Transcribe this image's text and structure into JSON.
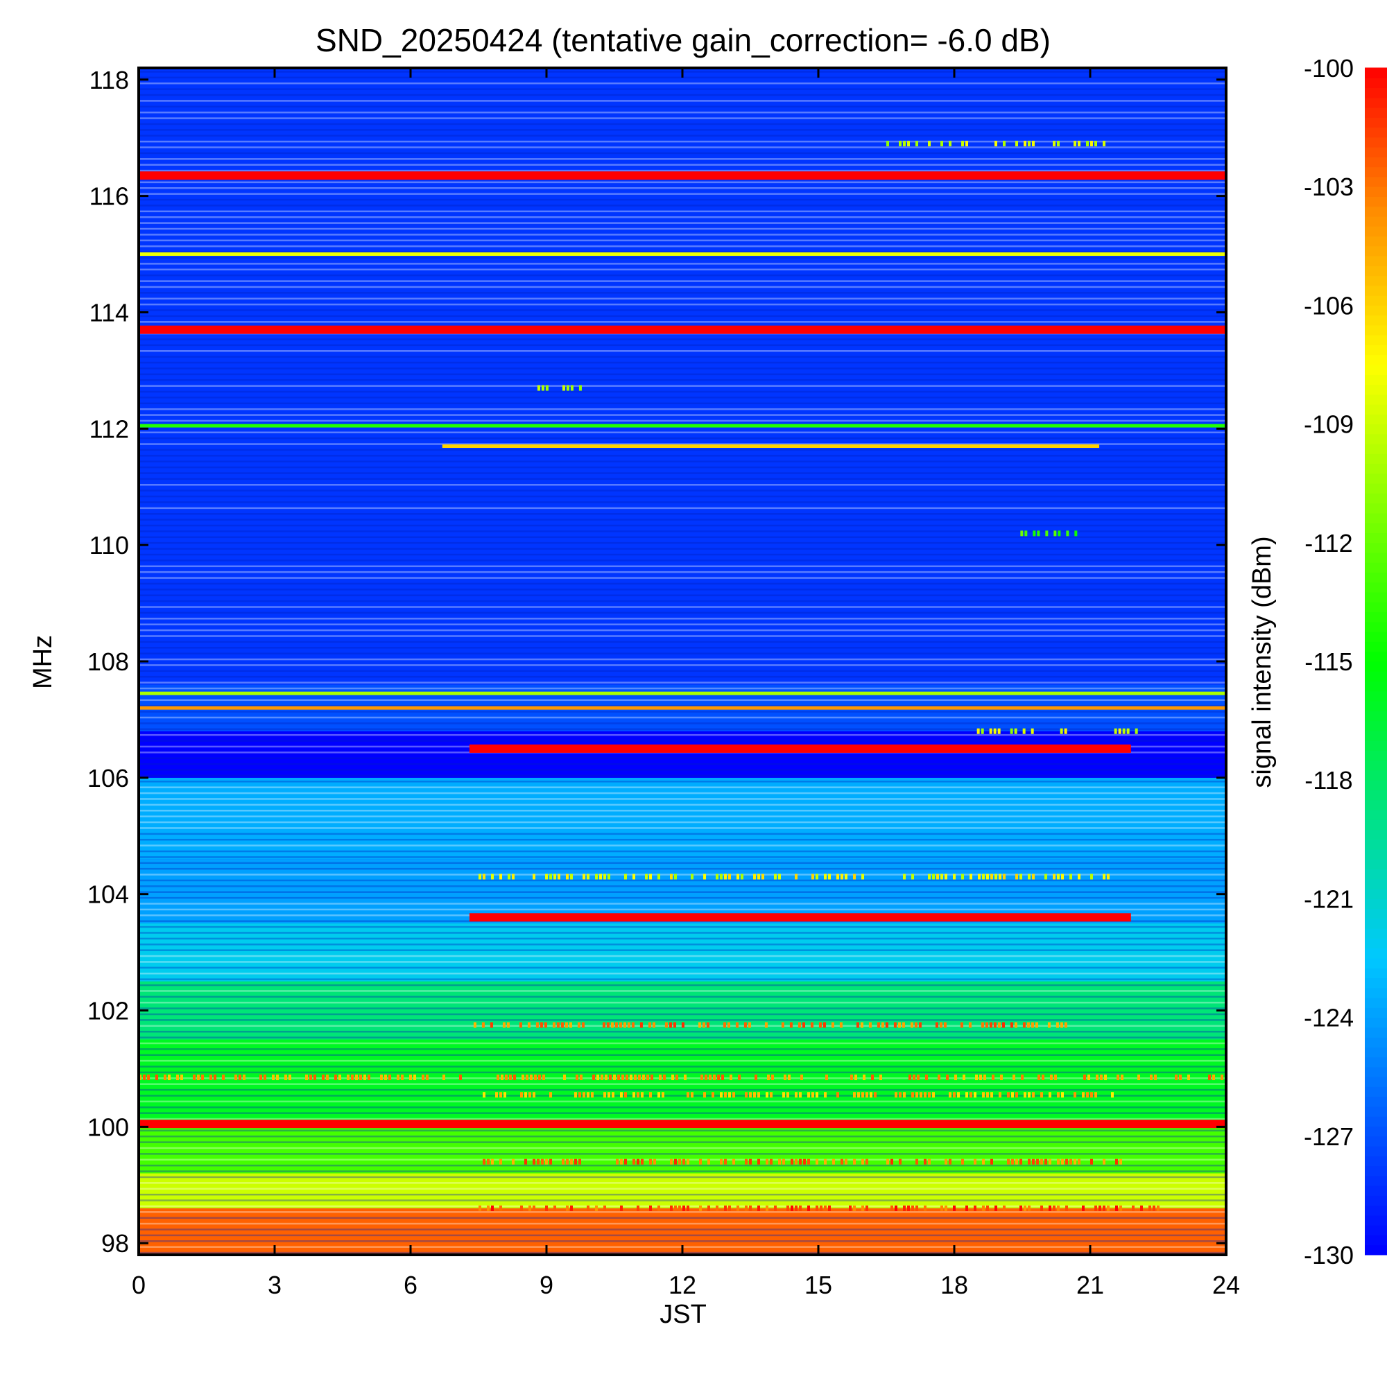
{
  "chart_data": {
    "type": "heatmap",
    "title": "SND_20250424 (tentative gain_correction= -6.0 dB)",
    "xlabel": "JST",
    "ylabel": "MHz",
    "xlim": [
      0,
      24
    ],
    "ylim": [
      97.8,
      118.2
    ],
    "x_ticks": [
      0,
      3,
      6,
      9,
      12,
      15,
      18,
      21,
      24
    ],
    "y_ticks": [
      98,
      100,
      102,
      104,
      106,
      108,
      110,
      112,
      114,
      116,
      118
    ],
    "colorbar": {
      "label": "signal intensity (dBm)",
      "min": -130,
      "max": -100,
      "ticks": [
        -100,
        -103,
        -106,
        -109,
        -112,
        -115,
        -118,
        -121,
        -124,
        -127,
        -130
      ],
      "colormap": "rainbow (blue → cyan → green → yellow → red)"
    },
    "background_level_dBm": [
      {
        "freq_range_MHz": [
          97.8,
          98.6
        ],
        "level": -102.5
      },
      {
        "freq_range_MHz": [
          98.6,
          99.2
        ],
        "level": -109
      },
      {
        "freq_range_MHz": [
          99.2,
          100.0
        ],
        "level": -113
      },
      {
        "freq_range_MHz": [
          100.0,
          101.5
        ],
        "level": -116
      },
      {
        "freq_range_MHz": [
          101.5,
          102.5
        ],
        "level": -118.5
      },
      {
        "freq_range_MHz": [
          102.5,
          103.5
        ],
        "level": -122
      },
      {
        "freq_range_MHz": [
          103.5,
          104.6
        ],
        "level": -124
      },
      {
        "freq_range_MHz": [
          104.6,
          106.0
        ],
        "level": -123.5
      },
      {
        "freq_range_MHz": [
          106.0,
          106.8
        ],
        "level": -130
      },
      {
        "freq_range_MHz": [
          106.8,
          107.6
        ],
        "level": -127
      },
      {
        "freq_range_MHz": [
          107.6,
          108.0
        ],
        "level": -128
      },
      {
        "freq_range_MHz": [
          108.0,
          118.2
        ],
        "level": -128
      }
    ],
    "continuous_signals": [
      {
        "freq_MHz": 116.35,
        "level": -100,
        "time_range": [
          0,
          24
        ]
      },
      {
        "freq_MHz": 115.0,
        "level": -108,
        "time_range": [
          0,
          24
        ]
      },
      {
        "freq_MHz": 113.7,
        "level": -100,
        "time_range": [
          0,
          24
        ]
      },
      {
        "freq_MHz": 112.05,
        "level": -114,
        "time_range": [
          0,
          24
        ]
      },
      {
        "freq_MHz": 111.7,
        "level": -106,
        "time_range": [
          6.7,
          21.2
        ]
      },
      {
        "freq_MHz": 107.45,
        "level": -110,
        "time_range": [
          0,
          24
        ]
      },
      {
        "freq_MHz": 107.2,
        "level": -104,
        "time_range": [
          0,
          24
        ]
      },
      {
        "freq_MHz": 106.5,
        "level": -100,
        "time_range": [
          7.3,
          21.9
        ]
      },
      {
        "freq_MHz": 103.6,
        "level": -100,
        "time_range": [
          7.3,
          21.9
        ]
      },
      {
        "freq_MHz": 100.05,
        "level": -100,
        "time_range": [
          0,
          24
        ]
      }
    ],
    "intermittent_signals": [
      {
        "freq_MHz": 116.9,
        "level": -109,
        "time_range": [
          16.5,
          21.5
        ]
      },
      {
        "freq_MHz": 112.7,
        "level": -110,
        "time_range": [
          8.8,
          9.8
        ]
      },
      {
        "freq_MHz": 110.2,
        "level": -113,
        "time_range": [
          19.0,
          21.0
        ]
      },
      {
        "freq_MHz": 106.8,
        "level": -109,
        "time_range": [
          18.5,
          22.0
        ]
      },
      {
        "freq_MHz": 104.3,
        "level": -108,
        "time_range": [
          7.5,
          22.0
        ]
      },
      {
        "freq_MHz": 101.75,
        "level": -103,
        "time_range": [
          7.3,
          20.5
        ]
      },
      {
        "freq_MHz": 100.85,
        "level": -104,
        "time_range": [
          0,
          24
        ]
      },
      {
        "freq_MHz": 100.55,
        "level": -105,
        "time_range": [
          7.5,
          21.5
        ]
      },
      {
        "freq_MHz": 99.4,
        "level": -103,
        "time_range": [
          7.5,
          22.0
        ]
      },
      {
        "freq_MHz": 98.6,
        "level": -102,
        "time_range": [
          7.5,
          22.5
        ]
      }
    ],
    "grid": false
  }
}
